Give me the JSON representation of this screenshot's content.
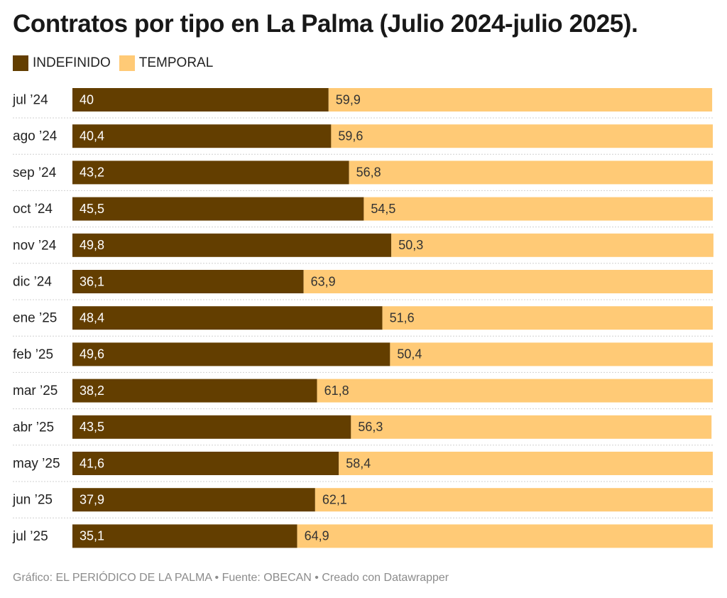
{
  "title": "Contratos por tipo en La Palma (Julio 2024-julio 2025).",
  "legend": [
    {
      "label": "INDEFINIDO",
      "color": "#633e00"
    },
    {
      "label": "TEMPORAL",
      "color": "#ffca76"
    }
  ],
  "footer": "Gráfico: EL PERIÓDICO DE LA PALMA • Fuente: OBECAN • Creado con Datawrapper",
  "chart_data": {
    "type": "bar",
    "stacked": true,
    "orientation": "horizontal",
    "title": "Contratos por tipo en La Palma (Julio 2024-julio 2025).",
    "categories": [
      "jul ’24",
      "ago ’24",
      "sep ’24",
      "oct ’24",
      "nov ’24",
      "dic ’24",
      "ene ’25",
      "feb ’25",
      "mar ’25",
      "abr ’25",
      "may ’25",
      "jun ’25",
      "jul ’25"
    ],
    "series": [
      {
        "name": "INDEFINIDO",
        "color": "#633e00",
        "values": [
          40,
          40.4,
          43.2,
          45.5,
          49.8,
          36.1,
          48.4,
          49.6,
          38.2,
          43.5,
          41.6,
          37.9,
          35.1
        ],
        "labels": [
          "40",
          "40,4",
          "43,2",
          "45,5",
          "49,8",
          "36,1",
          "48,4",
          "49,6",
          "38,2",
          "43,5",
          "41,6",
          "37,9",
          "35,1"
        ]
      },
      {
        "name": "TEMPORAL",
        "color": "#ffca76",
        "values": [
          59.9,
          59.6,
          56.8,
          54.5,
          50.3,
          63.9,
          51.6,
          50.4,
          61.8,
          56.3,
          58.4,
          62.1,
          64.9
        ],
        "labels": [
          "59,9",
          "59,6",
          "56,8",
          "54,5",
          "50,3",
          "63,9",
          "51,6",
          "50,4",
          "61,8",
          "56,3",
          "58,4",
          "62,1",
          "64,9"
        ]
      }
    ],
    "xlim": [
      0,
      100
    ],
    "grid": false,
    "legend_position": "top-left"
  }
}
